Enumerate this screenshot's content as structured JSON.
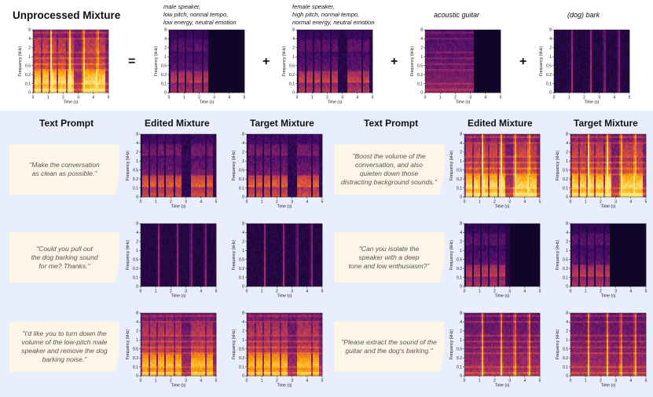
{
  "colors": {
    "panel_bg": "#e8eefb",
    "prompt_bg": "#fdf6e6",
    "spectrogram_dark": "#0c0521",
    "spectrogram_bright": "#fbe77a"
  },
  "top": {
    "title": "Unprocessed Mixture",
    "operators": [
      "=",
      "+",
      "+",
      "+"
    ],
    "sources": [
      {
        "label": "male speaker,\nlow pitch, normal tempo,\nlow energy, neutral emotion"
      },
      {
        "label": "female speaker,\nhigh pitch, normal tempo,\nnormal energy, neutral emotion"
      },
      {
        "label": "acoustic guitar"
      },
      {
        "label": "(dog) bark"
      }
    ]
  },
  "headers": {
    "text_prompt": "Text Prompt",
    "edited_mixture": "Edited Mixture",
    "target_mixture": "Target Mixture"
  },
  "prompts": [
    "\"Make the conversation\nas clean as possible.\"",
    "\"Could you pull out\nthe dog barking sound\nfor me? Thanks.\"",
    "\"I'd like you to turn down the\nvolume of the low-pitch male\nspeaker and remove the dog\nbarking noise.\"",
    "\"Boost the volume of the\nconversation, and also\nquieten down those\ndistracting background sounds.\"",
    "\"Can you isolate the\nspeaker with a deep\ntone and low enthusiasm?\"",
    "\"Please extract the sound of the\nguitar and the dog's barking.\""
  ],
  "axes": {
    "xlabel": "Time (s)",
    "ylabel": "Frequency (kHz)",
    "xticks": [
      "0",
      "1",
      "2",
      "3",
      "4",
      "5"
    ],
    "yticks": [
      "8",
      "4",
      "2",
      "1",
      "0.5",
      "0.2",
      "0.1",
      "0"
    ]
  },
  "spectrograms": [
    {
      "id": "mix",
      "intensity": 1.0,
      "speech": true,
      "guitar": true,
      "bark": true,
      "silent_after": null
    },
    {
      "id": "male",
      "intensity": 0.8,
      "speech": true,
      "guitar": false,
      "bark": false,
      "silent_after": 2.6
    },
    {
      "id": "female",
      "intensity": 0.85,
      "speech": true,
      "guitar": false,
      "bark": false,
      "silent_after": null
    },
    {
      "id": "guitar",
      "intensity": 0.75,
      "speech": false,
      "guitar": true,
      "bark": false,
      "silent_after": 3.2
    },
    {
      "id": "bark",
      "intensity": 0.7,
      "speech": false,
      "guitar": false,
      "bark": true,
      "silent_after": null
    },
    {
      "id": "r1-edited",
      "intensity": 1.0,
      "speech": true,
      "guitar": false,
      "bark": false,
      "silent_after": null
    },
    {
      "id": "r1-target",
      "intensity": 1.0,
      "speech": true,
      "guitar": false,
      "bark": false,
      "silent_after": null
    },
    {
      "id": "r2-edited",
      "intensity": 0.7,
      "speech": false,
      "guitar": false,
      "bark": true,
      "silent_after": null
    },
    {
      "id": "r2-target",
      "intensity": 0.7,
      "speech": false,
      "guitar": false,
      "bark": true,
      "silent_after": null
    },
    {
      "id": "r3-edited",
      "intensity": 0.9,
      "speech": true,
      "guitar": true,
      "bark": false,
      "silent_after": null
    },
    {
      "id": "r3-target",
      "intensity": 0.9,
      "speech": true,
      "guitar": true,
      "bark": false,
      "silent_after": null
    },
    {
      "id": "r4-edited",
      "intensity": 1.0,
      "speech": true,
      "guitar": true,
      "bark": true,
      "silent_after": null
    },
    {
      "id": "r4-target",
      "intensity": 1.0,
      "speech": true,
      "guitar": true,
      "bark": true,
      "silent_after": null
    },
    {
      "id": "r5-edited",
      "intensity": 0.8,
      "speech": true,
      "guitar": false,
      "bark": false,
      "silent_after": 3.0
    },
    {
      "id": "r5-target",
      "intensity": 0.8,
      "speech": true,
      "guitar": false,
      "bark": false,
      "silent_after": 2.6
    },
    {
      "id": "r6-edited",
      "intensity": 0.9,
      "speech": false,
      "guitar": true,
      "bark": true,
      "silent_after": null
    },
    {
      "id": "r6-target",
      "intensity": 0.9,
      "speech": false,
      "guitar": true,
      "bark": true,
      "silent_after": null
    }
  ]
}
